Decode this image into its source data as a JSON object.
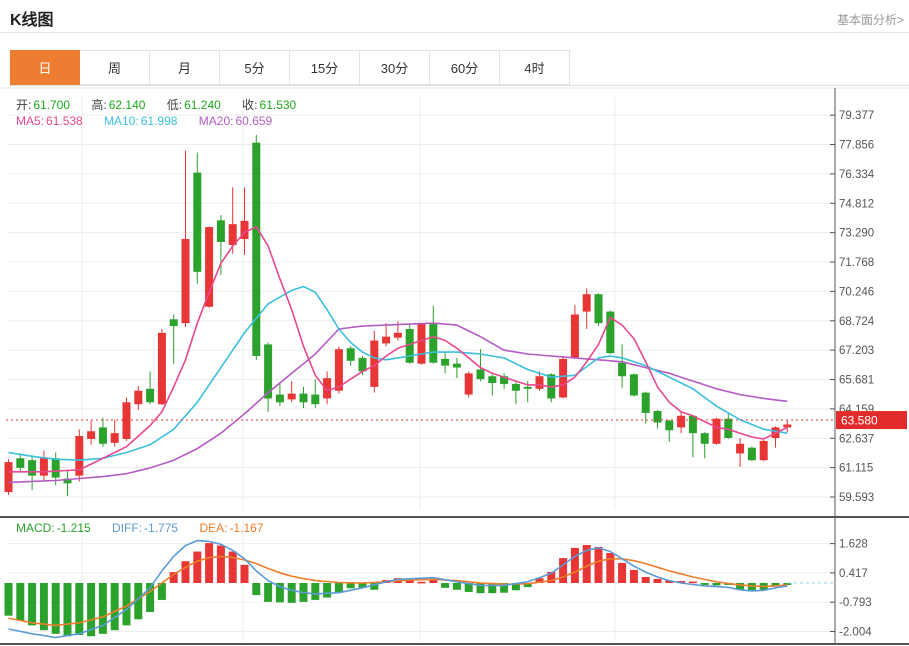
{
  "header": {
    "title": "K线图",
    "link": "基本面分析>"
  },
  "tabs": [
    {
      "label": "日",
      "active": true
    },
    {
      "label": "周",
      "active": false
    },
    {
      "label": "月",
      "active": false
    },
    {
      "label": "5分",
      "active": false
    },
    {
      "label": "15分",
      "active": false
    },
    {
      "label": "30分",
      "active": false
    },
    {
      "label": "60分",
      "active": false
    },
    {
      "label": "4时",
      "active": false
    }
  ],
  "legend": {
    "open_label": "开:",
    "open": "61.700",
    "high_label": "高:",
    "high": "62.140",
    "low_label": "低:",
    "low": "61.240",
    "close_label": "收:",
    "close": "61.530",
    "ma5_label": "MA5:",
    "ma5": "61.538",
    "ma10_label": "MA10:",
    "ma10": "61.998",
    "ma20_label": "MA20:",
    "ma20": "60.659"
  },
  "macd_legend": {
    "macd_label": "MACD:",
    "macd": "-1.215",
    "diff_label": "DIFF:",
    "diff": "-1.775",
    "dea_label": "DEA:",
    "dea": "-1.167"
  },
  "colors": {
    "up": "#e83535",
    "down": "#2aa22c",
    "ma5": "#e8488f",
    "ma10": "#3bbfdf",
    "ma20": "#b35cc3",
    "diff": "#5b9bd5",
    "dea": "#ef7d2a",
    "price_line": "#e53333",
    "badge_bg": "#e42b2b",
    "badge_text": "#ffffff",
    "tab_active_bg": "#ed7d31",
    "label_dark": "#444444",
    "value_green": "#1ca81c",
    "tick_text": "#555555",
    "grid": "#ededed",
    "axis": "#555555",
    "panel_border": "#1a1a1a",
    "zero_dash": "#86d7e9"
  },
  "chart_data": {
    "type": "candlestick+macd",
    "title": "K线图 daily candlestick with MA5/MA10/MA20 and MACD",
    "price_axis_ticks": [
      79.377,
      77.856,
      76.334,
      74.812,
      73.29,
      71.768,
      70.246,
      68.724,
      67.203,
      65.681,
      64.159,
      62.637,
      61.115,
      59.593
    ],
    "current_price": 63.58,
    "current_price_label": "63.580",
    "candles": [
      [
        59.85,
        61.55,
        59.7,
        61.4
      ],
      [
        61.6,
        61.85,
        60.9,
        61.1
      ],
      [
        61.5,
        61.75,
        59.95,
        60.7
      ],
      [
        60.7,
        62.0,
        60.4,
        61.65
      ],
      [
        61.6,
        61.9,
        60.2,
        60.6
      ],
      [
        60.55,
        61.0,
        59.65,
        60.3
      ],
      [
        60.7,
        63.1,
        60.4,
        62.75
      ],
      [
        62.6,
        63.55,
        62.3,
        63.0
      ],
      [
        63.2,
        63.7,
        62.2,
        62.35
      ],
      [
        62.4,
        63.6,
        62.2,
        62.9
      ],
      [
        62.6,
        64.75,
        62.5,
        64.5
      ],
      [
        64.4,
        65.35,
        64.1,
        65.1
      ],
      [
        65.2,
        66.1,
        64.4,
        64.5
      ],
      [
        64.4,
        68.3,
        64.35,
        68.1
      ],
      [
        68.8,
        69.05,
        66.5,
        68.45
      ],
      [
        68.6,
        77.54,
        68.4,
        72.96
      ],
      [
        76.4,
        77.44,
        70.65,
        71.26
      ],
      [
        69.45,
        73.6,
        69.4,
        73.58
      ],
      [
        73.93,
        74.2,
        71.1,
        72.81
      ],
      [
        72.65,
        75.64,
        72.2,
        73.73
      ],
      [
        72.96,
        75.64,
        72.14,
        73.9
      ],
      [
        77.95,
        78.35,
        66.7,
        66.9
      ],
      [
        67.5,
        67.6,
        64.0,
        64.7
      ],
      [
        64.9,
        65.5,
        64.3,
        64.5
      ],
      [
        64.65,
        65.6,
        64.5,
        64.95
      ],
      [
        64.95,
        65.3,
        64.2,
        64.5
      ],
      [
        64.9,
        65.7,
        64.2,
        64.4
      ],
      [
        64.7,
        66.1,
        64.4,
        65.75
      ],
      [
        65.1,
        67.4,
        64.95,
        67.25
      ],
      [
        67.3,
        67.4,
        66.4,
        66.65
      ],
      [
        66.8,
        66.9,
        65.9,
        66.1
      ],
      [
        65.3,
        68.2,
        65.0,
        67.7
      ],
      [
        67.55,
        68.6,
        67.4,
        67.9
      ],
      [
        67.85,
        68.7,
        67.7,
        68.1
      ],
      [
        68.3,
        68.55,
        66.5,
        66.55
      ],
      [
        66.5,
        68.6,
        66.45,
        68.55
      ],
      [
        68.55,
        69.5,
        66.5,
        66.55
      ],
      [
        66.75,
        67.05,
        66.0,
        66.4
      ],
      [
        66.5,
        66.8,
        65.75,
        66.3
      ],
      [
        64.9,
        66.1,
        64.75,
        66.0
      ],
      [
        66.2,
        67.25,
        65.6,
        65.7
      ],
      [
        65.85,
        65.95,
        64.85,
        65.5
      ],
      [
        65.85,
        66.0,
        65.2,
        65.45
      ],
      [
        65.45,
        65.55,
        64.4,
        65.1
      ],
      [
        65.3,
        65.6,
        64.5,
        65.2
      ],
      [
        65.2,
        66.1,
        65.1,
        65.85
      ],
      [
        65.95,
        66.0,
        64.5,
        64.7
      ],
      [
        64.75,
        66.9,
        64.7,
        66.75
      ],
      [
        66.8,
        69.55,
        66.75,
        69.05
      ],
      [
        69.2,
        70.4,
        68.3,
        70.1
      ],
      [
        70.1,
        70.15,
        68.45,
        68.6
      ],
      [
        69.2,
        69.25,
        67.0,
        67.05
      ],
      [
        66.55,
        67.5,
        65.25,
        65.85
      ],
      [
        65.95,
        66.0,
        64.8,
        64.85
      ],
      [
        65.0,
        65.05,
        63.4,
        63.95
      ],
      [
        64.05,
        64.1,
        63.15,
        63.45
      ],
      [
        63.55,
        63.6,
        62.45,
        63.05
      ],
      [
        63.2,
        64.05,
        62.9,
        63.8
      ],
      [
        63.8,
        63.85,
        61.65,
        62.9
      ],
      [
        62.9,
        62.95,
        61.6,
        62.35
      ],
      [
        62.35,
        63.7,
        62.3,
        63.65
      ],
      [
        63.65,
        63.95,
        62.6,
        62.65
      ],
      [
        61.85,
        62.65,
        61.15,
        62.35
      ],
      [
        62.15,
        62.2,
        61.45,
        61.5
      ],
      [
        61.5,
        62.55,
        61.45,
        62.5
      ],
      [
        62.65,
        63.25,
        62.15,
        63.2
      ],
      [
        63.2,
        63.55,
        62.95,
        63.35
      ]
    ],
    "ma5_points": [
      [
        0,
        60.9
      ],
      [
        3,
        60.9
      ],
      [
        6,
        61.0
      ],
      [
        8,
        61.6
      ],
      [
        10,
        62.2
      ],
      [
        12,
        63.3
      ],
      [
        13,
        64.0
      ],
      [
        14,
        65.3
      ],
      [
        15,
        66.7
      ],
      [
        16,
        68.6
      ],
      [
        17,
        70.2
      ],
      [
        18,
        71.7
      ],
      [
        19,
        72.6
      ],
      [
        20,
        73.3
      ],
      [
        21,
        73.6
      ],
      [
        22,
        72.6
      ],
      [
        23,
        70.9
      ],
      [
        24,
        69.3
      ],
      [
        25,
        67.4
      ],
      [
        26,
        65.9
      ],
      [
        27,
        65.1
      ],
      [
        28,
        65.3
      ],
      [
        29,
        65.7
      ],
      [
        30,
        66.1
      ],
      [
        31,
        66.4
      ],
      [
        32,
        66.9
      ],
      [
        33,
        67.3
      ],
      [
        34,
        67.5
      ],
      [
        35,
        67.7
      ],
      [
        36,
        67.9
      ],
      [
        37,
        67.7
      ],
      [
        38,
        67.3
      ],
      [
        39,
        66.8
      ],
      [
        40,
        66.3
      ],
      [
        41,
        66.0
      ],
      [
        42,
        65.8
      ],
      [
        43,
        65.6
      ],
      [
        44,
        65.4
      ],
      [
        45,
        65.4
      ],
      [
        46,
        65.3
      ],
      [
        47,
        65.4
      ],
      [
        48,
        65.8
      ],
      [
        49,
        66.6
      ],
      [
        50,
        67.5
      ],
      [
        51,
        68.9
      ],
      [
        52,
        68.5
      ],
      [
        53,
        67.8
      ],
      [
        54,
        66.6
      ],
      [
        55,
        65.3
      ],
      [
        56,
        64.5
      ],
      [
        57,
        64.0
      ],
      [
        58,
        63.8
      ],
      [
        59,
        63.5
      ],
      [
        60,
        63.2
      ],
      [
        61,
        63.1
      ],
      [
        62,
        62.9
      ],
      [
        63,
        62.7
      ],
      [
        64,
        62.6
      ],
      [
        65,
        62.9
      ],
      [
        66,
        63.2
      ]
    ],
    "ma10_points": [
      [
        0,
        61.9
      ],
      [
        2,
        61.7
      ],
      [
        4,
        61.55
      ],
      [
        6,
        61.5
      ],
      [
        8,
        61.6
      ],
      [
        10,
        61.9
      ],
      [
        12,
        62.3
      ],
      [
        14,
        63.1
      ],
      [
        16,
        64.5
      ],
      [
        18,
        66.3
      ],
      [
        20,
        68.1
      ],
      [
        22,
        69.6
      ],
      [
        24,
        70.3
      ],
      [
        25,
        70.5
      ],
      [
        26,
        70.2
      ],
      [
        27,
        69.3
      ],
      [
        28,
        68.3
      ],
      [
        29,
        67.6
      ],
      [
        30,
        67.1
      ],
      [
        31,
        66.8
      ],
      [
        32,
        66.7
      ],
      [
        33,
        66.8
      ],
      [
        34,
        66.9
      ],
      [
        36,
        67.1
      ],
      [
        38,
        67.1
      ],
      [
        40,
        67.0
      ],
      [
        42,
        66.8
      ],
      [
        44,
        66.2
      ],
      [
        46,
        65.8
      ],
      [
        48,
        65.9
      ],
      [
        50,
        66.8
      ],
      [
        51,
        66.9
      ],
      [
        52,
        66.8
      ],
      [
        54,
        66.4
      ],
      [
        56,
        65.8
      ],
      [
        58,
        65.2
      ],
      [
        60,
        64.3
      ],
      [
        62,
        63.6
      ],
      [
        64,
        63.1
      ],
      [
        66,
        62.9
      ]
    ],
    "ma20_points": [
      [
        0,
        60.35
      ],
      [
        4,
        60.45
      ],
      [
        8,
        60.65
      ],
      [
        10,
        60.8
      ],
      [
        12,
        61.1
      ],
      [
        14,
        61.5
      ],
      [
        16,
        62.1
      ],
      [
        18,
        62.9
      ],
      [
        20,
        63.9
      ],
      [
        22,
        65.0
      ],
      [
        24,
        66.0
      ],
      [
        26,
        67.0
      ],
      [
        28,
        68.3
      ],
      [
        30,
        68.45
      ],
      [
        32,
        68.5
      ],
      [
        34,
        68.55
      ],
      [
        36,
        68.6
      ],
      [
        38,
        68.5
      ],
      [
        40,
        67.9
      ],
      [
        42,
        67.2
      ],
      [
        44,
        67.0
      ],
      [
        46,
        66.9
      ],
      [
        48,
        66.8
      ],
      [
        50,
        66.7
      ],
      [
        52,
        66.6
      ],
      [
        54,
        66.3
      ],
      [
        56,
        66.0
      ],
      [
        58,
        65.6
      ],
      [
        60,
        65.2
      ],
      [
        62,
        64.9
      ],
      [
        64,
        64.7
      ],
      [
        66,
        64.55
      ]
    ],
    "macd": {
      "axis_ticks": [
        1.628,
        0.417,
        -0.793,
        -2.004
      ],
      "hist": [
        -1.35,
        -1.55,
        -1.75,
        -1.95,
        -2.1,
        -2.2,
        -2.15,
        -2.2,
        -2.1,
        -1.95,
        -1.75,
        -1.5,
        -1.2,
        -0.7,
        0.45,
        0.9,
        1.3,
        1.65,
        1.55,
        1.3,
        0.75,
        -0.5,
        -0.78,
        -0.8,
        -0.82,
        -0.78,
        -0.7,
        -0.6,
        -0.4,
        -0.22,
        -0.2,
        -0.28,
        0.12,
        0.2,
        0.15,
        0.05,
        0.17,
        -0.2,
        -0.28,
        -0.37,
        -0.42,
        -0.42,
        -0.4,
        -0.3,
        -0.17,
        0.2,
        0.46,
        1.03,
        1.45,
        1.57,
        1.49,
        1.24,
        0.83,
        0.54,
        0.25,
        0.17,
        0.1,
        0.08,
        0.06,
        -0.08,
        -0.1,
        -0.08,
        -0.28,
        -0.3,
        -0.28,
        -0.12,
        -0.08
      ],
      "diff_points": [
        [
          0,
          -1.9
        ],
        [
          2,
          -2.1
        ],
        [
          4,
          -2.25
        ],
        [
          6,
          -2.1
        ],
        [
          8,
          -1.75
        ],
        [
          10,
          -1.1
        ],
        [
          12,
          -0.2
        ],
        [
          13,
          0.5
        ],
        [
          14,
          1.1
        ],
        [
          15,
          1.55
        ],
        [
          16,
          1.75
        ],
        [
          17,
          1.72
        ],
        [
          18,
          1.6
        ],
        [
          19,
          1.35
        ],
        [
          20,
          1.0
        ],
        [
          21,
          0.5
        ],
        [
          22,
          0.1
        ],
        [
          23,
          -0.15
        ],
        [
          24,
          -0.3
        ],
        [
          25,
          -0.4
        ],
        [
          26,
          -0.45
        ],
        [
          28,
          -0.4
        ],
        [
          30,
          -0.2
        ],
        [
          32,
          0.05
        ],
        [
          33,
          0.15
        ],
        [
          35,
          0.2
        ],
        [
          36,
          0.22
        ],
        [
          38,
          0.05
        ],
        [
          40,
          -0.1
        ],
        [
          42,
          -0.1
        ],
        [
          44,
          0.05
        ],
        [
          46,
          0.4
        ],
        [
          47,
          0.75
        ],
        [
          48,
          1.1
        ],
        [
          49,
          1.35
        ],
        [
          50,
          1.45
        ],
        [
          51,
          1.3
        ],
        [
          52,
          1.0
        ],
        [
          53,
          0.7
        ],
        [
          54,
          0.45
        ],
        [
          55,
          0.25
        ],
        [
          56,
          0.1
        ],
        [
          57,
          0.0
        ],
        [
          59,
          -0.12
        ],
        [
          61,
          -0.18
        ],
        [
          62,
          -0.28
        ],
        [
          63,
          -0.33
        ],
        [
          64,
          -0.3
        ],
        [
          65,
          -0.2
        ],
        [
          66,
          -0.12
        ]
      ],
      "dea_points": [
        [
          0,
          -1.45
        ],
        [
          2,
          -1.65
        ],
        [
          4,
          -1.75
        ],
        [
          6,
          -1.65
        ],
        [
          8,
          -1.4
        ],
        [
          10,
          -0.95
        ],
        [
          12,
          -0.35
        ],
        [
          13,
          0.0
        ],
        [
          14,
          0.35
        ],
        [
          15,
          0.65
        ],
        [
          16,
          0.9
        ],
        [
          17,
          1.05
        ],
        [
          18,
          1.1
        ],
        [
          19,
          1.05
        ],
        [
          20,
          0.95
        ],
        [
          21,
          0.8
        ],
        [
          22,
          0.6
        ],
        [
          23,
          0.42
        ],
        [
          24,
          0.28
        ],
        [
          25,
          0.18
        ],
        [
          26,
          0.1
        ],
        [
          28,
          0.02
        ],
        [
          30,
          0.0
        ],
        [
          32,
          0.05
        ],
        [
          34,
          0.12
        ],
        [
          36,
          0.15
        ],
        [
          38,
          0.1
        ],
        [
          40,
          0.0
        ],
        [
          42,
          -0.05
        ],
        [
          44,
          -0.03
        ],
        [
          46,
          0.1
        ],
        [
          47,
          0.25
        ],
        [
          48,
          0.45
        ],
        [
          49,
          0.7
        ],
        [
          50,
          0.9
        ],
        [
          51,
          1.0
        ],
        [
          52,
          1.0
        ],
        [
          53,
          0.92
        ],
        [
          54,
          0.8
        ],
        [
          55,
          0.65
        ],
        [
          56,
          0.5
        ],
        [
          57,
          0.38
        ],
        [
          58,
          0.25
        ],
        [
          59,
          0.15
        ],
        [
          60,
          0.05
        ],
        [
          61,
          -0.02
        ],
        [
          62,
          -0.08
        ],
        [
          63,
          -0.12
        ],
        [
          64,
          -0.14
        ],
        [
          65,
          -0.12
        ],
        [
          66,
          -0.08
        ]
      ]
    }
  }
}
